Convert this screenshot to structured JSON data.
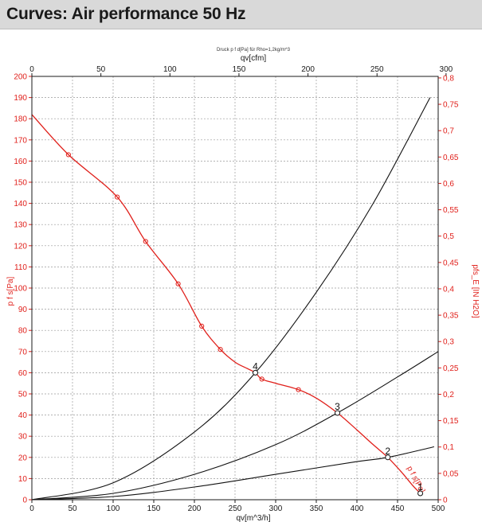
{
  "header": {
    "title": "Curves: Air performance 50 Hz"
  },
  "chart_data": {
    "type": "line",
    "title": "Druck p f d[Pa] für Rho=1,2kg/m^3",
    "xlabel": "qv[m^3/h]",
    "xlabel_top": "qv[cfm]",
    "ylabel": "p f s[Pa]",
    "ylabel_right": "pfs_E [IN H2O]",
    "xlim": [
      0,
      500
    ],
    "ylim": [
      0,
      200
    ],
    "xlim_top": [
      0,
      300
    ],
    "ylim_right": [
      0,
      0.8
    ],
    "x_ticks": [
      "0",
      "50",
      "100",
      "150",
      "200",
      "250",
      "300",
      "350",
      "400",
      "450",
      "500"
    ],
    "x_ticks_top": [
      "0",
      "50",
      "100",
      "150",
      "200",
      "250",
      "300"
    ],
    "y_ticks": [
      "0",
      "10",
      "20",
      "30",
      "40",
      "50",
      "60",
      "70",
      "80",
      "90",
      "100",
      "110",
      "120",
      "130",
      "140",
      "150",
      "160",
      "170",
      "180",
      "190",
      "200"
    ],
    "y_ticks_right": [
      "0",
      "0,05",
      "0,1",
      "0,15",
      "0,2",
      "0,25",
      "0,3",
      "0,35",
      "0,4",
      "0,45",
      "0,5",
      "0,55",
      "0,6",
      "0,65",
      "0,7",
      "0,75",
      "0,8"
    ],
    "grid": true,
    "colors": {
      "fan_curve": "#e0201b",
      "system_curve": "#111111",
      "grid": "#9a9a9a"
    },
    "series": [
      {
        "id": "fan",
        "name": "p f s[Pa]",
        "x": [
          0,
          45,
          105,
          140,
          180,
          209,
          232,
          250,
          265,
          275,
          283,
          300,
          328,
          350,
          376,
          400,
          420,
          438,
          455,
          468,
          478
        ],
        "y": [
          182,
          163,
          143,
          122,
          102,
          82,
          71,
          65,
          62,
          60,
          57,
          55,
          52,
          48,
          41,
          33,
          26,
          20,
          13,
          7,
          3
        ],
        "markers_x": [
          45,
          105,
          140,
          180,
          209,
          232,
          283,
          328,
          376,
          438
        ],
        "markers_y": [
          163,
          143,
          122,
          102,
          82,
          71,
          57,
          52,
          41,
          20
        ]
      },
      {
        "id": "system-4",
        "name": "",
        "x": [
          0,
          100,
          200,
          275,
          350,
          420,
          490
        ],
        "y": [
          0,
          8,
          32,
          60,
          98,
          140,
          190
        ]
      },
      {
        "id": "system-3",
        "name": "",
        "x": [
          0,
          100,
          200,
          300,
          376,
          450,
          500
        ],
        "y": [
          0,
          3,
          12,
          26,
          41,
          58,
          70
        ]
      },
      {
        "id": "system-2",
        "name": "",
        "x": [
          0,
          100,
          200,
          300,
          400,
          438,
          495
        ],
        "y": [
          0,
          1.5,
          6,
          12,
          18,
          20,
          25
        ]
      }
    ],
    "operating_points": [
      {
        "label": "4",
        "x": 275,
        "y": 60
      },
      {
        "label": "3",
        "x": 376,
        "y": 41
      },
      {
        "label": "2",
        "x": 438,
        "y": 20
      },
      {
        "label": "1",
        "x": 478,
        "y": 3
      }
    ]
  }
}
